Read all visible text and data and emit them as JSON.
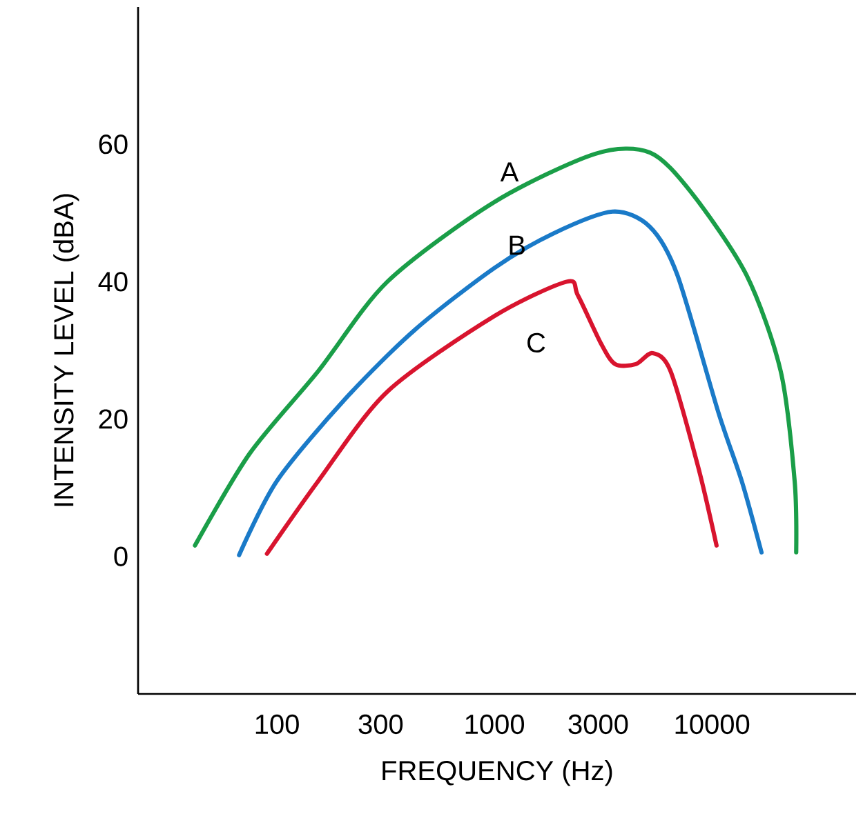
{
  "chart_data": {
    "type": "line",
    "xlabel": "FREQUENCY (Hz)",
    "ylabel": "INTENSITY LEVEL (dBA)",
    "log": "x",
    "grid": false,
    "marker": "none",
    "line_style": "solid",
    "xlim": [
      23,
      46000
    ],
    "ylim": [
      -20,
      80
    ],
    "xticks": [
      100,
      300,
      1000,
      3000,
      10000
    ],
    "yticks": [
      0,
      20,
      40,
      60
    ],
    "series": [
      {
        "color": "#1a9e48",
        "x": [
          42,
          75,
          155,
          322,
          1000,
          2900,
          5180,
          8030,
          14400,
          20700,
          24000,
          24400
        ],
        "values": [
          1.6,
          15,
          27,
          40,
          51.6,
          58.6,
          58.8,
          53,
          41,
          27,
          11,
          0.6
        ]
      },
      {
        "color": "#1a7ac8",
        "x": [
          67,
          100,
          207,
          431,
          1000,
          1860,
          3490,
          5180,
          6930,
          10700,
          13700,
          16900
        ],
        "values": [
          0.2,
          11,
          23,
          33,
          42,
          47,
          50.2,
          48,
          41,
          21,
          11,
          0.6
        ]
      },
      {
        "color": "#d8142e",
        "x": [
          90,
          155,
          322,
          1000,
          2150,
          2420,
          3090,
          3590,
          4470,
          5330,
          6450,
          8650,
          10500
        ],
        "values": [
          0.4,
          11,
          24,
          35,
          40,
          38,
          31,
          28,
          28,
          29.6,
          27,
          13,
          1.6
        ]
      }
    ],
    "annotations": [
      "A",
      "B",
      "C"
    ]
  }
}
